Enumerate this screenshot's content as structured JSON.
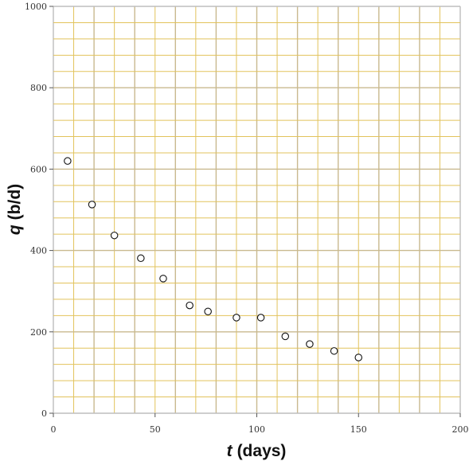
{
  "chart_data": {
    "type": "scatter",
    "xlabel_symbol": "t",
    "xlabel_unit": "(days)",
    "ylabel_symbol": "q",
    "ylabel_unit": "(b/d)",
    "xlim": [
      0,
      200
    ],
    "ylim": [
      0,
      1000
    ],
    "xticks": [
      0,
      50,
      100,
      150,
      200
    ],
    "yticks": [
      0,
      200,
      400,
      600,
      800,
      1000
    ],
    "grid": true,
    "colors": {
      "grid_tan": "#c9b98f",
      "grid_gold": "#e2c35c",
      "grid_gray": "#bdbdbd",
      "marker_edge": "#111111",
      "marker_fill": "#ffffff"
    },
    "points": [
      {
        "x": 7,
        "y": 620
      },
      {
        "x": 19,
        "y": 513
      },
      {
        "x": 30,
        "y": 437
      },
      {
        "x": 43,
        "y": 381
      },
      {
        "x": 54,
        "y": 331
      },
      {
        "x": 67,
        "y": 265
      },
      {
        "x": 76,
        "y": 250
      },
      {
        "x": 90,
        "y": 235
      },
      {
        "x": 102,
        "y": 235
      },
      {
        "x": 114,
        "y": 189
      },
      {
        "x": 126,
        "y": 170
      },
      {
        "x": 138,
        "y": 153
      },
      {
        "x": 150,
        "y": 137
      }
    ]
  }
}
